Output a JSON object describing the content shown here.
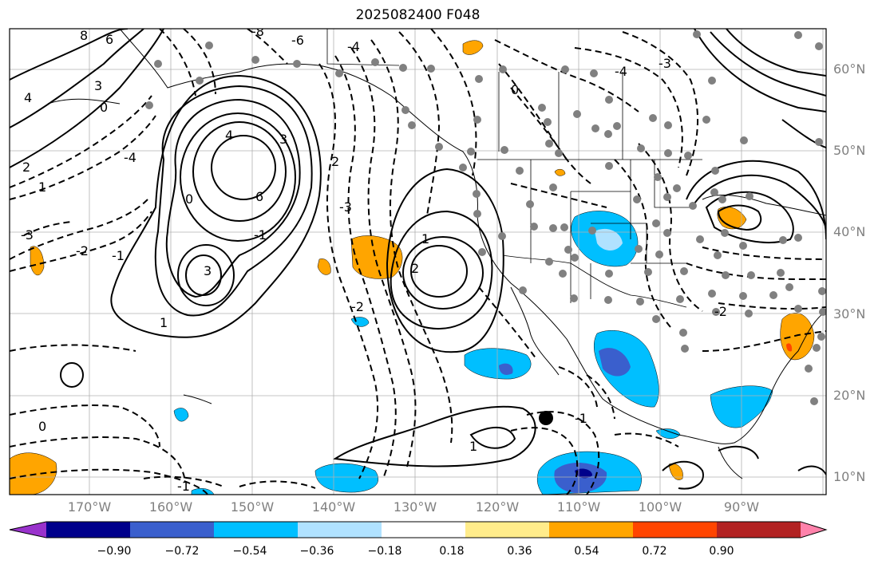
{
  "title": "2025082400 F048",
  "lat_labels": [
    "60°N",
    "50°N",
    "40°N",
    "30°N",
    "20°N",
    "10°N"
  ],
  "lon_labels": [
    "170°W",
    "160°W",
    "150°W",
    "140°W",
    "130°W",
    "120°W",
    "110°W",
    "100°W",
    "90°W"
  ],
  "colorbar": {
    "ticks": [
      "−0.90",
      "−0.72",
      "−0.54",
      "−0.36",
      "−0.18",
      "0.18",
      "0.36",
      "0.54",
      "0.72",
      "0.90"
    ],
    "colors": [
      "#9932cc",
      "#00008b",
      "#3a5fcd",
      "#00bfff",
      "#b0e2ff",
      "#ffffff",
      "#ffec8b",
      "#ffa500",
      "#ff4500",
      "#b22222",
      "#ff82ab"
    ]
  },
  "contour_labels": [
    "8",
    "6",
    "4",
    "3",
    "2",
    "1",
    "0",
    "-1",
    "-2",
    "-3",
    "-4",
    "-6",
    "-8",
    "6",
    "4",
    "3",
    "3",
    "2",
    "1",
    "0",
    "-1",
    "-2",
    "-3",
    "-4",
    "2",
    "1",
    "0",
    "-1",
    "-2",
    "-3",
    "-4",
    "-1",
    "0",
    "1"
  ],
  "colors": {
    "grid": "#b0b0b0",
    "station": "#808080",
    "contour": "#000000"
  }
}
